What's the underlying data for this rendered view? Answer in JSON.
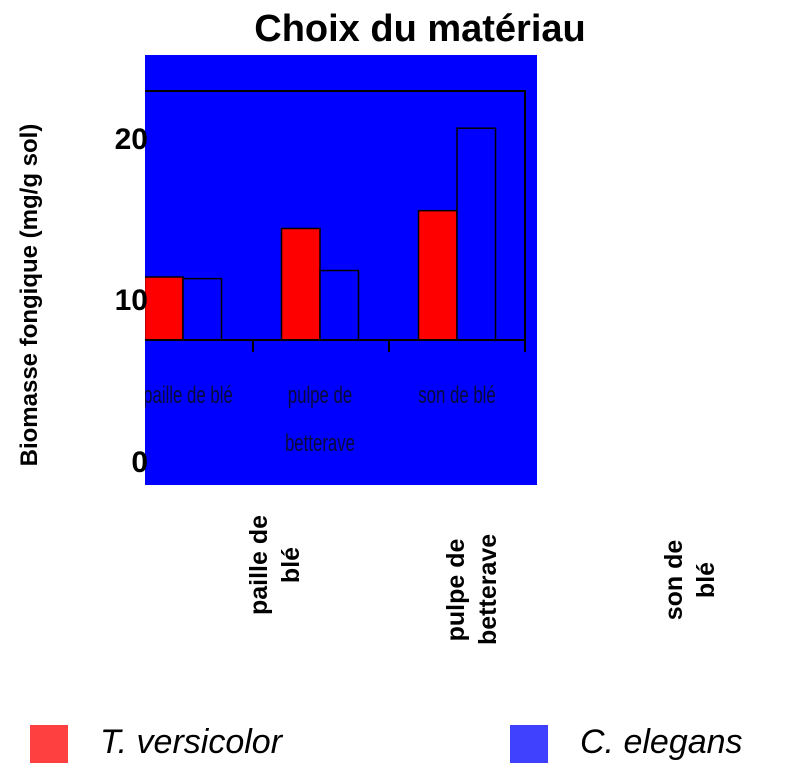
{
  "chart_data": {
    "type": "bar",
    "title": "Choix du matériau",
    "y_label": "Biomasse fongique (mg/g sol)",
    "categories": [
      "paille de blé",
      "pulpe de betterave",
      "son de blé"
    ],
    "series": [
      {
        "name": "T. versicolor",
        "color": "#ff0000",
        "values": [
          11.5,
          14.5,
          15.6
        ]
      },
      {
        "name": "C. elegans",
        "color": "#0000ff",
        "values": [
          11.4,
          11.9,
          20.7
        ]
      }
    ],
    "ylim": [
      0,
      23
    ],
    "yticks": [
      0,
      10,
      20
    ]
  }
}
